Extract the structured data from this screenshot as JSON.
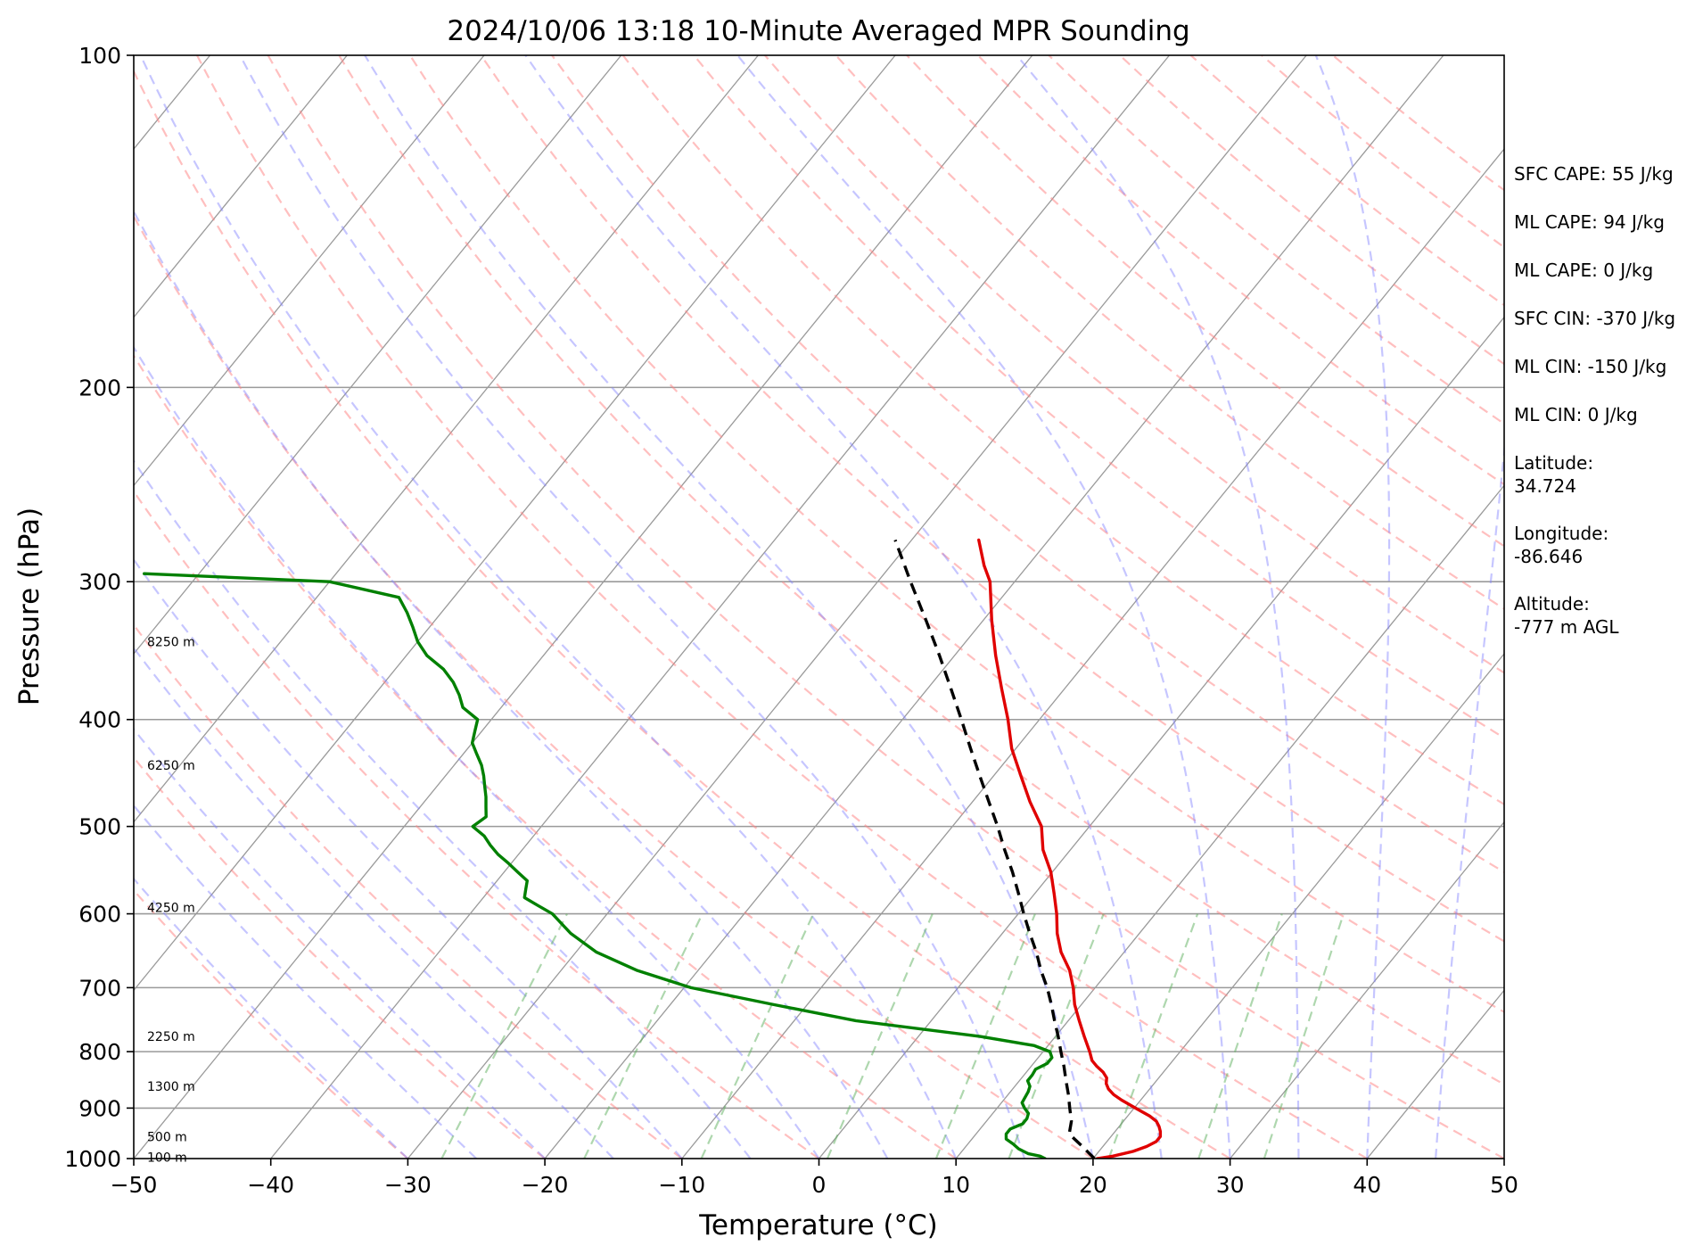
{
  "chart_data": {
    "type": "line",
    "title": "2024/10/06 13:18 10-Minute Averaged MPR Sounding",
    "xlabel": "Temperature (°C)",
    "ylabel": "Pressure (hPa)",
    "xlim": [
      -50,
      50
    ],
    "ylim": [
      1000,
      100
    ],
    "y_scale": "log",
    "skew": true,
    "grid": true,
    "x_ticks": [
      "−50",
      "−40",
      "−30",
      "−20",
      "−10",
      "0",
      "10",
      "20",
      "30",
      "40",
      "50"
    ],
    "y_ticks": [
      "100",
      "200",
      "300",
      "400",
      "500",
      "600",
      "700",
      "800",
      "900",
      "1000"
    ],
    "x_tick_values": [
      -50,
      -40,
      -30,
      -20,
      -10,
      0,
      10,
      20,
      30,
      40,
      50
    ],
    "y_tick_values": [
      100,
      200,
      300,
      400,
      500,
      600,
      700,
      800,
      900,
      1000
    ],
    "height_labels": [
      "8250 m",
      "6250 m",
      "4250 m",
      "2250 m",
      "1300 m",
      "500 m",
      "100 m"
    ],
    "height_label_pressures": [
      340,
      440,
      592,
      775,
      860,
      955,
      997
    ],
    "series": [
      {
        "color": "#e00000",
        "style": "solid",
        "pressure": [
          1000,
          995,
          985,
          975,
          965,
          955,
          945,
          935,
          925,
          915,
          905,
          895,
          885,
          875,
          865,
          855,
          845,
          835,
          825,
          815,
          800,
          775,
          750,
          725,
          700,
          675,
          650,
          625,
          600,
          575,
          550,
          525,
          500,
          475,
          450,
          425,
          400,
          375,
          350,
          325,
          300,
          290,
          275
        ],
        "values": [
          20.3,
          21.3,
          22.5,
          23.2,
          23.6,
          23.6,
          23.3,
          22.9,
          22.4,
          21.6,
          20.6,
          19.6,
          18.6,
          17.7,
          17.0,
          16.5,
          16.2,
          15.6,
          14.8,
          14.1,
          13.4,
          12.1,
          10.8,
          9.5,
          8.4,
          7.1,
          5.4,
          4.0,
          2.8,
          1.4,
          -0.1,
          -2.0,
          -3.5,
          -5.8,
          -8.0,
          -10.3,
          -12.3,
          -14.6,
          -17.0,
          -19.4,
          -21.8,
          -23.2,
          -25.1
        ]
      },
      {
        "color": "#000000",
        "style": "dashed",
        "pressure": [
          1000,
          975,
          950,
          925,
          900,
          875,
          850,
          825,
          800,
          775,
          750,
          725,
          700,
          675,
          650,
          625,
          600,
          575,
          550,
          525,
          500,
          475,
          450,
          425,
          400,
          375,
          350,
          325,
          300,
          290,
          275
        ],
        "values": [
          20.1,
          18.5,
          16.8,
          16.2,
          15.3,
          14.4,
          13.4,
          12.4,
          11.3,
          10.2,
          9.0,
          7.8,
          6.5,
          5.0,
          3.6,
          2.0,
          0.4,
          -1.2,
          -2.9,
          -4.8,
          -6.7,
          -8.8,
          -11.0,
          -13.3,
          -15.7,
          -18.3,
          -21.1,
          -24.2,
          -27.6,
          -29.0,
          -31.2
        ]
      },
      {
        "color": "#008000",
        "style": "solid",
        "pressure": [
          1000,
          995,
          990,
          980,
          970,
          960,
          950,
          940,
          930,
          920,
          910,
          900,
          890,
          880,
          870,
          860,
          850,
          840,
          830,
          820,
          810,
          800,
          790,
          775,
          750,
          725,
          700,
          675,
          650,
          625,
          600,
          590,
          580,
          570,
          560,
          550,
          540,
          530,
          520,
          510,
          500,
          490,
          480,
          470,
          460,
          450,
          440,
          430,
          420,
          410,
          400,
          390,
          380,
          370,
          360,
          350,
          340,
          330,
          320,
          310,
          300,
          295
        ],
        "values": [
          16.5,
          16.0,
          15.0,
          14.0,
          13.3,
          12.5,
          12.2,
          12.2,
          12.8,
          12.8,
          12.6,
          12.0,
          11.5,
          11.4,
          11.3,
          11.1,
          10.6,
          10.6,
          10.5,
          11.0,
          11.0,
          10.5,
          9.0,
          4.5,
          -5.5,
          -12.5,
          -19.5,
          -24.5,
          -28.5,
          -31.5,
          -34.0,
          -35.5,
          -37.0,
          -37.4,
          -37.8,
          -39.0,
          -40.2,
          -41.5,
          -42.6,
          -43.6,
          -45.0,
          -44.6,
          -45.2,
          -45.8,
          -46.5,
          -47.2,
          -48.0,
          -49.0,
          -50.0,
          -50.5,
          -51.0,
          -52.8,
          -53.8,
          -55.0,
          -56.5,
          -58.5,
          -60.0,
          -61.2,
          -62.5,
          -64.0,
          -70.0,
          -84.0
        ]
      }
    ]
  },
  "stats": {
    "lines": [
      "SFC CAPE: 55 J/kg",
      "ML CAPE: 94 J/kg",
      "ML CAPE: 0 J/kg",
      "SFC CIN: -370 J/kg",
      "ML CIN: -150 J/kg",
      "ML CIN: 0 J/kg"
    ],
    "latitude_label": "Latitude:",
    "latitude_value": "34.724",
    "longitude_label": "Longitude:",
    "longitude_value": "-86.646",
    "altitude_label": "Altitude:",
    "altitude_value": "-777 m AGL"
  },
  "colors": {
    "isotherm": "#9a9a9a",
    "dry_adiabat": "#ff8080",
    "moist_adiabat": "#8080ff",
    "mixing_ratio": "#60b060"
  }
}
